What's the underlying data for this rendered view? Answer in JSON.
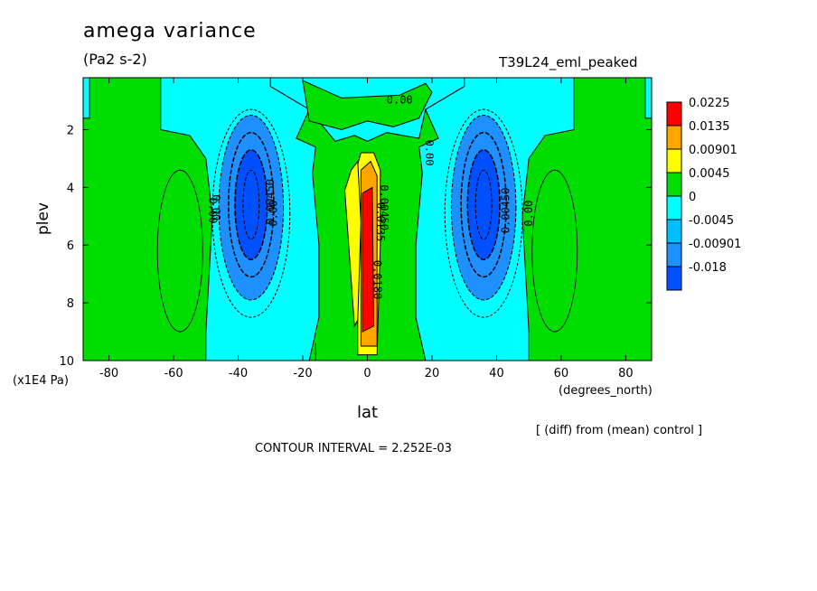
{
  "chart_data": {
    "type": "heatmap",
    "subtype": "filled-contour",
    "title": "amega variance",
    "units": "(Pa2 s-2)",
    "run_label": "T39L24_eml_peaked",
    "xlabel": "lat",
    "x_units": "(degrees_north)",
    "ylabel": "plev",
    "y_units": "(x1E4 Pa)",
    "xlim": [
      -88,
      88
    ],
    "ylim": [
      0.2,
      10
    ],
    "y_inverted": true,
    "x_ticks": [
      "-80",
      "-60",
      "-40",
      "-20",
      "0",
      "20",
      "40",
      "60",
      "80"
    ],
    "x_tick_values": [
      -80,
      -60,
      -40,
      -20,
      0,
      20,
      40,
      60,
      80
    ],
    "y_ticks": [
      "2",
      "4",
      "6",
      "8",
      "10"
    ],
    "y_tick_values": [
      2,
      4,
      6,
      8,
      10
    ],
    "legend_position": "right",
    "legend": [
      {
        "label": "0.0225",
        "color": "#ff0000"
      },
      {
        "label": "0.0135",
        "color": "#ffa500"
      },
      {
        "label": "0.00901",
        "color": "#ffff00"
      },
      {
        "label": "0.0045",
        "color": "#00dd00"
      },
      {
        "label": "0",
        "color": "#00ffff"
      },
      {
        "label": "-0.0045",
        "color": "#00bfff"
      },
      {
        "label": "-0.00901",
        "color": "#1e90ff"
      },
      {
        "label": "-0.018",
        "color": "#0050ff"
      }
    ],
    "colors": {
      "positive_bg": "#00dd00",
      "zero_band": "#00ffff",
      "neg1": "#1e90ff",
      "neg2": "#0050ff",
      "pos1": "#ffff00",
      "pos2": "#ffa500",
      "pos3": "#ff0000"
    },
    "contour_labels": [
      "0.00",
      "0.00",
      "0.00",
      "0.00",
      "0.00",
      "0.00",
      "0.00450",
      "0.00450",
      "0.00450",
      "0.0135",
      "0.0180"
    ],
    "contour_interval": "CONTOUR INTERVAL = 2.252E-03",
    "note": "[ (diff) from (mean) control ]",
    "features": [
      {
        "name": "southern-negative-cell",
        "lat_center": -36,
        "plev_center": 4.5,
        "sign": "negative"
      },
      {
        "name": "northern-negative-cell",
        "lat_center": 36,
        "plev_center": 4.5,
        "sign": "negative"
      },
      {
        "name": "equatorial-positive-jet",
        "lat_center": 0,
        "plev_center": 6,
        "sign": "positive"
      }
    ]
  }
}
